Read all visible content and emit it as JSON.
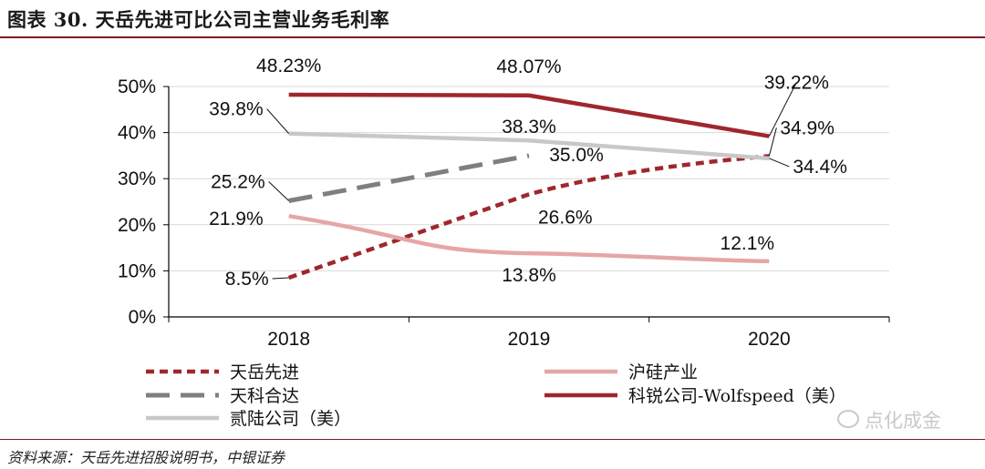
{
  "title": "图表 30. 天岳先进可比公司主营业务毛利率",
  "source": "资料来源：天岳先进招股说明书，中银证券",
  "watermark": "点化成金",
  "chart_data": {
    "type": "line",
    "title": "图表 30. 天岳先进可比公司主营业务毛利率",
    "xlabel": "",
    "ylabel": "",
    "categories": [
      "2018",
      "2019",
      "2020"
    ],
    "ylim": [
      0,
      50
    ],
    "yticks": [
      "0%",
      "10%",
      "20%",
      "30%",
      "40%",
      "50%"
    ],
    "grid": true,
    "legend_position": "bottom",
    "series": [
      {
        "name": "天岳先进",
        "values": [
          8.5,
          26.6,
          34.9
        ],
        "labels": [
          "8.5%",
          "26.6%",
          "34.9%"
        ],
        "color": "#a0262d",
        "style": "dashed"
      },
      {
        "name": "沪硅产业",
        "values": [
          21.9,
          13.8,
          12.1
        ],
        "labels": [
          "21.9%",
          "13.8%",
          "12.1%"
        ],
        "color": "#e6a6a6",
        "style": "solid"
      },
      {
        "name": "天科合达",
        "values": [
          25.2,
          35.0,
          null
        ],
        "labels": [
          "25.2%",
          "35.0%",
          ""
        ],
        "color": "#7f7f7f",
        "style": "longdash"
      },
      {
        "name": "科锐公司-Wolfspeed（美）",
        "values": [
          48.23,
          48.07,
          39.22
        ],
        "labels": [
          "48.23%",
          "48.07%",
          "39.22%"
        ],
        "color": "#a0262d",
        "style": "solid"
      },
      {
        "name": "贰陆公司（美）",
        "values": [
          39.8,
          38.3,
          34.4
        ],
        "labels": [
          "39.8%",
          "38.3%",
          "34.4%"
        ],
        "color": "#c8c8c8",
        "style": "solid"
      }
    ]
  }
}
